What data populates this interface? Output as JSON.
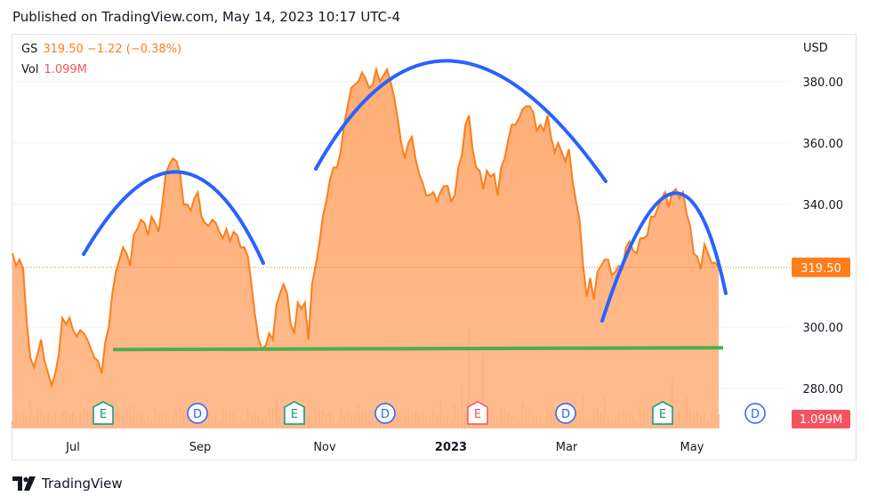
{
  "header": {
    "published": "Published on TradingView.com, May 14, 2023 10:17 UTC-4"
  },
  "legend": {
    "symbol": "GS",
    "price": "319.50",
    "change": "−1.22 (−0.38%)",
    "vol_label": "Vol",
    "vol_value": "1.099M"
  },
  "axis": {
    "currency": "USD",
    "y_ticks": [
      "380.00",
      "360.00",
      "340.00",
      "300.00",
      "280.00"
    ],
    "x_ticks": [
      "Jul",
      "Sep",
      "Nov",
      "2023",
      "Mar",
      "May"
    ]
  },
  "badges": {
    "price": "319.50",
    "volume": "1.099M"
  },
  "markers": [
    {
      "letter": "E"
    },
    {
      "letter": "D"
    },
    {
      "letter": "E"
    },
    {
      "letter": "D"
    },
    {
      "letter": "E"
    },
    {
      "letter": "D"
    },
    {
      "letter": "E"
    },
    {
      "letter": "D"
    }
  ],
  "footer": {
    "brand": "TradingView"
  },
  "colors": {
    "line": "#ff7d1a",
    "area": "#ffab70",
    "arc": "#2962ff",
    "support": "#4caf50",
    "volume": "#f7525f",
    "earnings": "#089981",
    "dividend": "#2962ff"
  },
  "chart_data": {
    "type": "area",
    "symbol": "GS",
    "ylim": [
      267,
      393
    ],
    "y_ticks": [
      280,
      300,
      340,
      360,
      380
    ],
    "last_price": 319.5,
    "x_ticks": [
      "Jul",
      "Sep",
      "Nov",
      "2023",
      "Mar",
      "May"
    ],
    "series": [
      {
        "name": "GS",
        "values": [
          324,
          320,
          322,
          319,
          302,
          290,
          287,
          291,
          296,
          289,
          285,
          281,
          285,
          291,
          303,
          301,
          303,
          299,
          297,
          299,
          298,
          296,
          293,
          290,
          289,
          285,
          295,
          300,
          311,
          318,
          322,
          326,
          324,
          320,
          330,
          332,
          335,
          334,
          330,
          336,
          334,
          331,
          340,
          350,
          353,
          355,
          354,
          350,
          340,
          340,
          338,
          342,
          344,
          336,
          334,
          333,
          335,
          334,
          331,
          329,
          332,
          328,
          331,
          330,
          326,
          326,
          323,
          314,
          304,
          296,
          293,
          294,
          298,
          296,
          307,
          311,
          314,
          311,
          301,
          298,
          308,
          306,
          308,
          296,
          314,
          320,
          327,
          336,
          341,
          348,
          352,
          352,
          357,
          366,
          372,
          378,
          379,
          380,
          383,
          381,
          378,
          379,
          384,
          380,
          382,
          384,
          380,
          375,
          368,
          360,
          355,
          360,
          362,
          355,
          350,
          347,
          343,
          343,
          344,
          341,
          344,
          346,
          346,
          341,
          343,
          352,
          356,
          366,
          369,
          358,
          352,
          351,
          345,
          351,
          349,
          350,
          343,
          352,
          355,
          361,
          366,
          366,
          368,
          371,
          372,
          372,
          370,
          364,
          366,
          364,
          369,
          362,
          357,
          360,
          357,
          354,
          358,
          348,
          341,
          335,
          320,
          310,
          316,
          309,
          318,
          320,
          322,
          322,
          317,
          318,
          320,
          319,
          326,
          328,
          325,
          324,
          329,
          329,
          330,
          336,
          336,
          339,
          342,
          344,
          339,
          344,
          345,
          342,
          344,
          337,
          333,
          324,
          323,
          319,
          327,
          324,
          321,
          321,
          319.5
        ]
      }
    ],
    "volume_series_name": "Vol",
    "volume_last": "1.099M",
    "support_line": 293,
    "events": [
      {
        "type": "earnings",
        "label": "E",
        "date": "Jul"
      },
      {
        "type": "dividend",
        "label": "D",
        "date": "Sep"
      },
      {
        "type": "earnings",
        "label": "E",
        "date": "Oct"
      },
      {
        "type": "dividend",
        "label": "D",
        "date": "Nov"
      },
      {
        "type": "earnings",
        "label": "E",
        "date": "Jan"
      },
      {
        "type": "dividend",
        "label": "D",
        "date": "Feb"
      },
      {
        "type": "earnings",
        "label": "E",
        "date": "Apr"
      },
      {
        "type": "dividend",
        "label": "D",
        "date": "May"
      }
    ]
  }
}
